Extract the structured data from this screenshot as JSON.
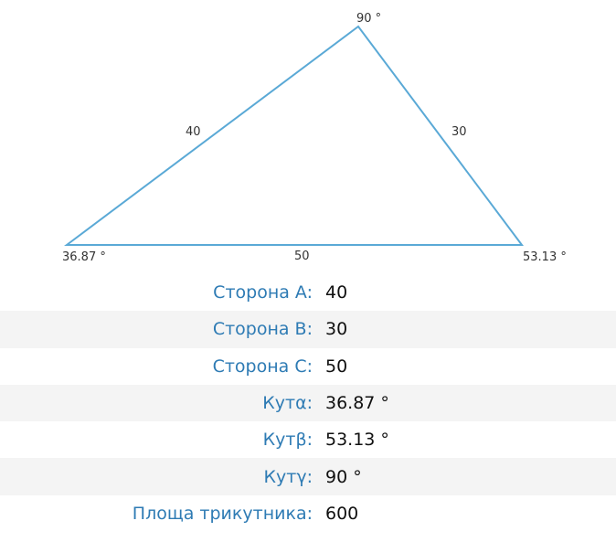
{
  "triangle": {
    "top_angle": "90 °",
    "left_angle": "36.87 °",
    "right_angle": "53.13 °",
    "side_left": "40",
    "side_right": "30",
    "side_bottom": "50",
    "line_color": "#5aa9d6"
  },
  "results": [
    {
      "label": "Сторона A:",
      "value": "40"
    },
    {
      "label": "Сторона B:",
      "value": "30"
    },
    {
      "label": "Сторона C:",
      "value": "50"
    },
    {
      "label": "Кутα:",
      "value": "36.87 °"
    },
    {
      "label": "Кутβ:",
      "value": "53.13 °"
    },
    {
      "label": "Кутγ:",
      "value": "90 °"
    },
    {
      "label": "Площа трикутника:",
      "value": "600"
    }
  ],
  "colors": {
    "label": "#2e7bb4",
    "value": "#111111",
    "stripe": "#f4f4f4"
  }
}
